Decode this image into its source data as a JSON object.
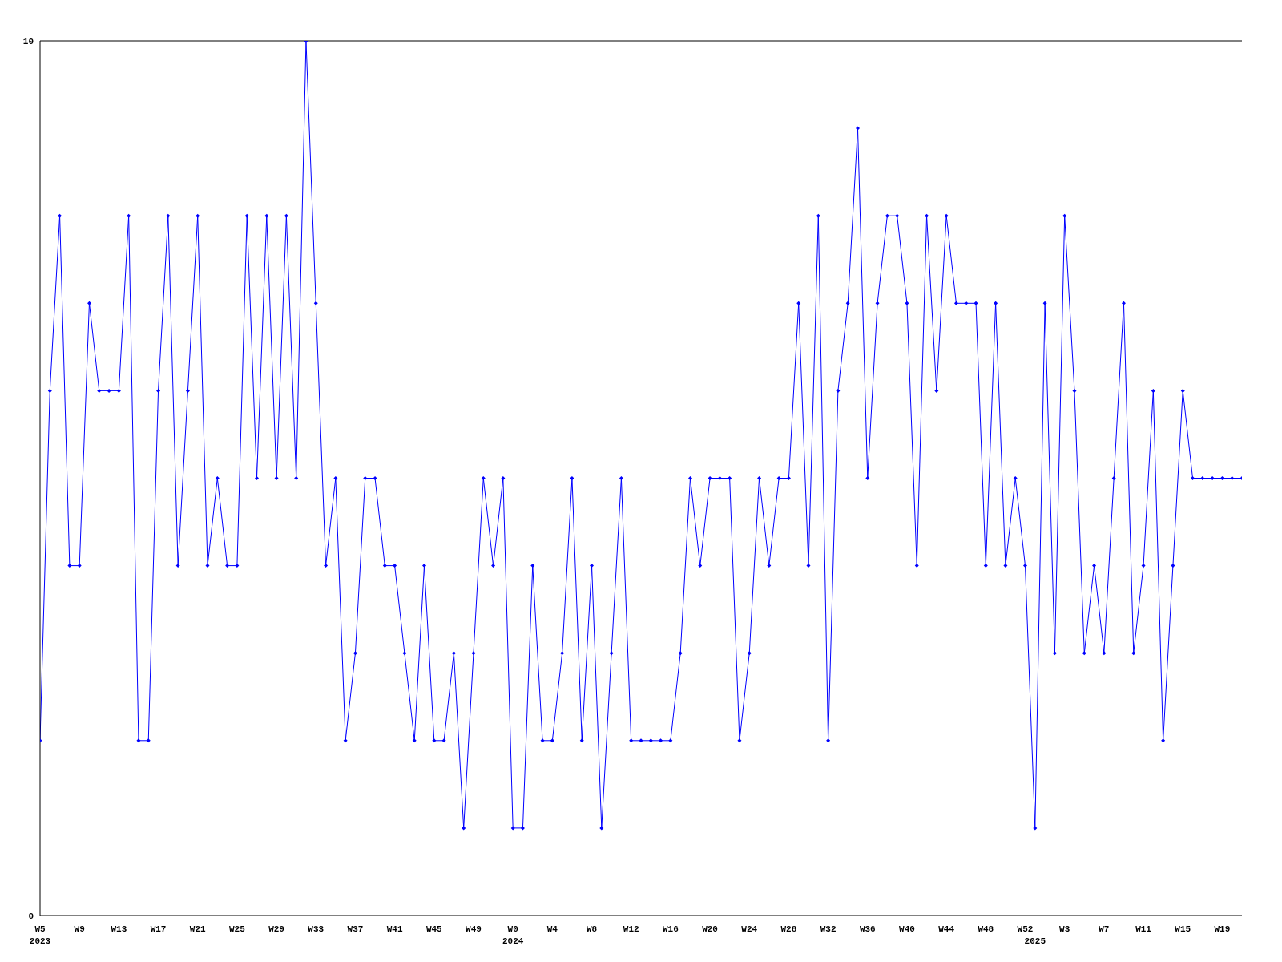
{
  "chart_data": {
    "type": "line",
    "categories": [
      "W5\n2023",
      null,
      null,
      null,
      "W9",
      null,
      null,
      null,
      "W13",
      null,
      null,
      null,
      "W17",
      null,
      null,
      null,
      "W21",
      null,
      null,
      null,
      "W25",
      null,
      null,
      null,
      "W29",
      null,
      null,
      null,
      "W33",
      null,
      null,
      null,
      "W37",
      null,
      null,
      null,
      "W41",
      null,
      null,
      null,
      "W45",
      null,
      null,
      null,
      "W49",
      null,
      null,
      null,
      "W0\n2024",
      null,
      null,
      null,
      "W4",
      null,
      null,
      null,
      "W8",
      null,
      null,
      null,
      "W12",
      null,
      null,
      null,
      "W16",
      null,
      null,
      null,
      "W20",
      null,
      null,
      null,
      "W24",
      null,
      null,
      null,
      "W28",
      null,
      null,
      null,
      "W32",
      null,
      null,
      null,
      "W36",
      null,
      null,
      null,
      "W40",
      null,
      null,
      null,
      "W44",
      null,
      null,
      null,
      "W48",
      null,
      null,
      null,
      "W52",
      "\n2025",
      null,
      null,
      "W3",
      null,
      null,
      null,
      "W7",
      null,
      null,
      null,
      "W11",
      null,
      null,
      null,
      "W15",
      null,
      null,
      null,
      "W19",
      null,
      null
    ],
    "series": [
      {
        "color": "#0000ff",
        "values": [
          2,
          6,
          8,
          4,
          4,
          7,
          6,
          6,
          6,
          8,
          2,
          2,
          6,
          8,
          4,
          6,
          8,
          4,
          5,
          4,
          4,
          8,
          5,
          8,
          5,
          8,
          5,
          10,
          7,
          4,
          5,
          2,
          3,
          5,
          5,
          4,
          4,
          3,
          2,
          4,
          2,
          2,
          3,
          1,
          3,
          5,
          4,
          5,
          1,
          1,
          4,
          2,
          2,
          3,
          5,
          2,
          4,
          1,
          3,
          5,
          2,
          2,
          2,
          2,
          2,
          3,
          5,
          4,
          5,
          5,
          5,
          2,
          3,
          5,
          4,
          5,
          5,
          7,
          4,
          8,
          2,
          6,
          7,
          9,
          5,
          7,
          8,
          8,
          7,
          4,
          8,
          6,
          8,
          7,
          7,
          7,
          4,
          7,
          4,
          5,
          4,
          1,
          7,
          3,
          8,
          6,
          3,
          4,
          3,
          5,
          7,
          3,
          4,
          6,
          2,
          4,
          6,
          5,
          5,
          5,
          5,
          5,
          5
        ]
      }
    ],
    "ylim": [
      0,
      10
    ],
    "yticks": [
      0,
      10
    ],
    "grid": false,
    "marker": "diamond",
    "line_style": "solid"
  }
}
